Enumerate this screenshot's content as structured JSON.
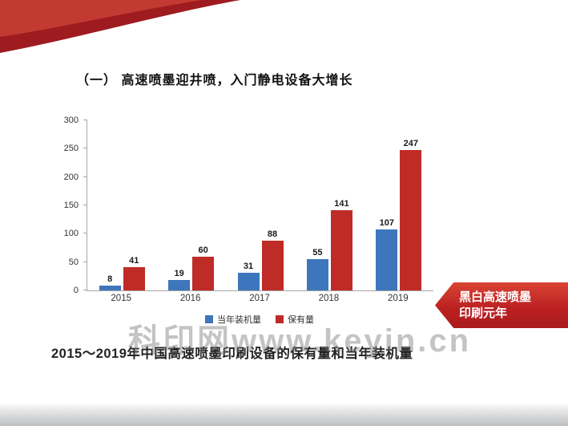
{
  "slide": {
    "title": "（一） 高速喷墨迎井喷，入门静电设备大增长",
    "caption": "2015～2019年中国高速喷墨印刷设备的保有量和当年装机量",
    "watermark": "科印网www.keyin.cn",
    "banner": {
      "line1": "黑白高速喷墨",
      "line2": "印刷元年"
    }
  },
  "colors": {
    "series_blue": "#3d76bd",
    "series_red": "#bf2b27",
    "banner_red": "#bb1f21",
    "ribbon_dark": "#9e1b20",
    "ribbon_light": "#c23a31"
  },
  "chart_data": {
    "type": "bar",
    "title": "",
    "xlabel": "",
    "ylabel": "",
    "categories": [
      "2015",
      "2016",
      "2017",
      "2018",
      "2019"
    ],
    "series": [
      {
        "name": "当年装机量",
        "color": "#3d76bd",
        "values": [
          8,
          19,
          31,
          55,
          107
        ]
      },
      {
        "name": "保有量",
        "color": "#bf2b27",
        "values": [
          41,
          60,
          88,
          141,
          247
        ]
      }
    ],
    "ylim": [
      0,
      300
    ],
    "yticks": [
      0,
      50,
      100,
      150,
      200,
      250,
      300
    ],
    "grid": false,
    "legend_position": "bottom"
  }
}
